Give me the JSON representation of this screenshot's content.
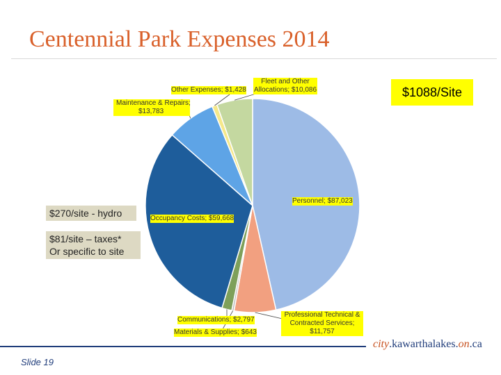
{
  "title": "Centennial Park Expenses 2014",
  "per_site_label": "$1088/Site",
  "notes": {
    "hydro": "$270/site - hydro",
    "taxes_line1": "$81/site – taxes*",
    "taxes_line2": "Or specific to site"
  },
  "brand": {
    "city": "city",
    "dot": ".",
    "name": "kawarthalakes",
    "dot2": ".",
    "on": "on",
    "ca": ".ca"
  },
  "slide_label": "Slide 19",
  "chart_data": {
    "type": "pie",
    "title": "",
    "slices": [
      {
        "label": "Personnel; $87,023",
        "category": "Personnel",
        "value": 87023,
        "color": "#9dbbe6"
      },
      {
        "label": "Professional Technical & Contracted Services; $11,757",
        "category": "Professional Technical & Contracted Services",
        "value": 11757,
        "color": "#f2a080"
      },
      {
        "label": "Materials & Supplies; $643",
        "category": "Materials & Supplies",
        "value": 643,
        "color": "#bfbfbf"
      },
      {
        "label": "Communications; $2,797",
        "category": "Communications",
        "value": 2797,
        "color": "#7ea05a"
      },
      {
        "label": "Occupancy Costs; $59,668",
        "category": "Occupancy Costs",
        "value": 59668,
        "color": "#1e5d9b"
      },
      {
        "label": "Maintenance & Repairs; $13,783",
        "category": "Maintenance & Repairs",
        "value": 13783,
        "color": "#5ea4e6"
      },
      {
        "label": "Other Expenses; $1,428",
        "category": "Other Expenses",
        "value": 1428,
        "color": "#f5e88a"
      },
      {
        "label": "Fleet and Other Allocations; $10,086",
        "category": "Fleet and Other Allocations",
        "value": 10086,
        "color": "#c4d8a0"
      }
    ],
    "callout_text": {
      "personnel": "Personnel; $87,023",
      "professional_line1": "Professional Technical &",
      "professional_line2": "Contracted Services;",
      "professional_line3": "$11,757",
      "materials": "Materials & Supplies; $643",
      "communications": "Communications; $2,797",
      "occupancy": "Occupancy Costs; $59,668",
      "maintenance_line1": "Maintenance & Repairs;",
      "maintenance_line2": "$13,783",
      "other": "Other Expenses; $1,428",
      "fleet_line1": "Fleet and Other",
      "fleet_line2": "Allocations; $10,086"
    },
    "start_position": "12 o'clock, clockwise",
    "legend": "none (callout labels)"
  }
}
